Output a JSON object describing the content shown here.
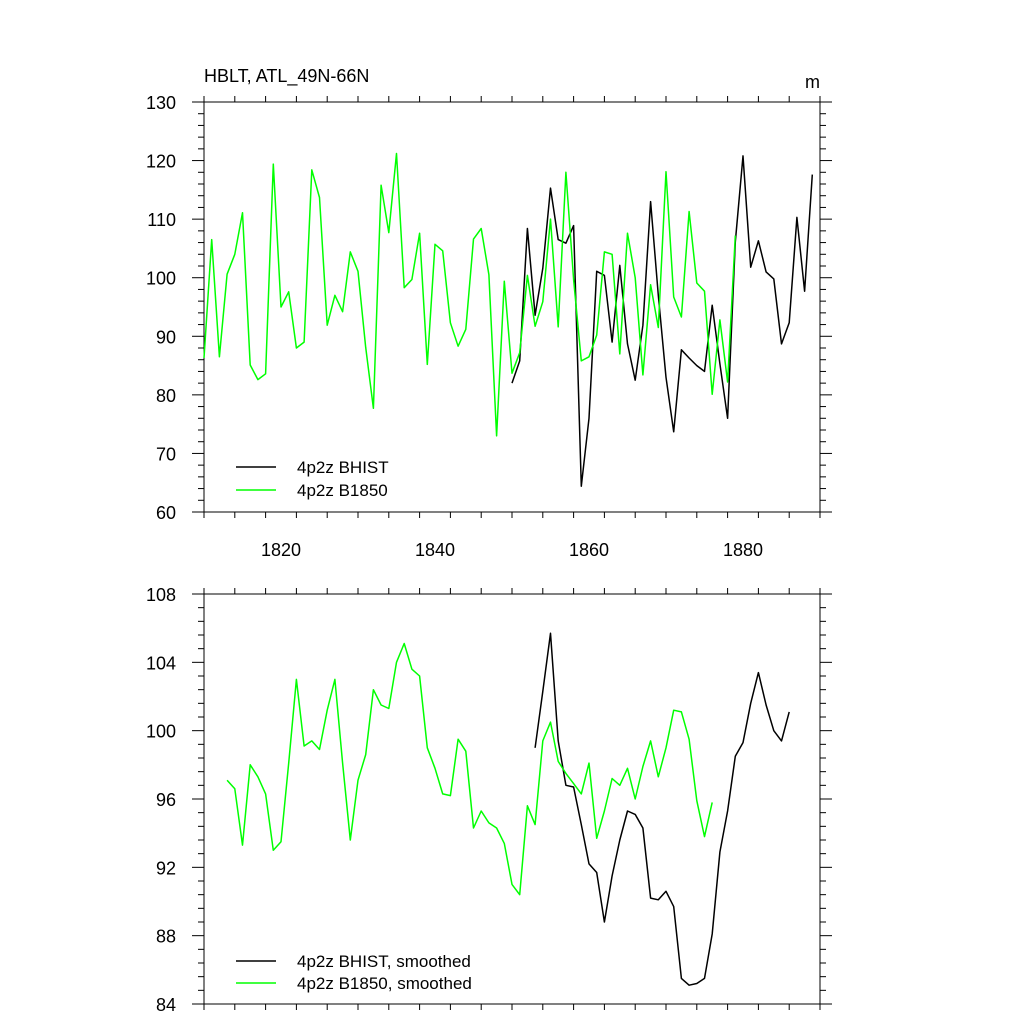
{
  "chart_data": [
    {
      "type": "line",
      "title": "HBLT, ATL_49N-66N",
      "units_label": "m",
      "xlim": [
        1810,
        1890
      ],
      "ylim": [
        60,
        130
      ],
      "xticks": [
        1820,
        1840,
        1860,
        1880
      ],
      "xtick_labels": [
        "1820",
        "1840",
        "1860",
        "1880"
      ],
      "yticks": [
        60,
        70,
        80,
        90,
        100,
        110,
        120,
        130
      ],
      "ytick_labels": [
        "60",
        "70",
        "80",
        "90",
        "100",
        "110",
        "120",
        "130"
      ],
      "legend_position": "bottom-left",
      "series": [
        {
          "name": "4p2z BHIST",
          "color": "#000000",
          "x": [
            1850,
            1851,
            1852,
            1853,
            1854,
            1855,
            1856,
            1857,
            1858,
            1859,
            1860,
            1861,
            1862,
            1863,
            1864,
            1865,
            1866,
            1867,
            1868,
            1869,
            1870,
            1871,
            1872,
            1873,
            1874,
            1875,
            1876,
            1877,
            1878,
            1879,
            1880,
            1881,
            1882,
            1883,
            1884,
            1885,
            1886,
            1887,
            1888,
            1889
          ],
          "y": [
            82,
            85.8,
            108.4,
            93.6,
            101.6,
            115.3,
            106.5,
            105.9,
            108.9,
            64.4,
            76,
            101.1,
            100.4,
            89,
            102.1,
            88.7,
            82.5,
            91.9,
            113,
            97,
            83,
            73.7,
            87.7,
            86.3,
            85,
            84,
            95.3,
            85.3,
            76,
            106.1,
            120.8,
            101.8,
            106.3,
            101,
            99.8,
            88.7,
            92.3,
            110.3,
            97.7,
            117.6
          ]
        },
        {
          "name": "4p2z B1850",
          "color": "#00ff00",
          "x": [
            1810,
            1811,
            1812,
            1813,
            1814,
            1815,
            1816,
            1817,
            1818,
            1819,
            1820,
            1821,
            1822,
            1823,
            1824,
            1825,
            1826,
            1827,
            1828,
            1829,
            1830,
            1831,
            1832,
            1833,
            1834,
            1835,
            1836,
            1837,
            1838,
            1839,
            1840,
            1841,
            1842,
            1843,
            1844,
            1845,
            1846,
            1847,
            1848,
            1849,
            1850,
            1851,
            1852,
            1853,
            1854,
            1855,
            1856,
            1857,
            1858,
            1859,
            1860,
            1861,
            1862,
            1863,
            1864,
            1865,
            1866,
            1867,
            1868,
            1869,
            1870,
            1871,
            1872,
            1873,
            1874,
            1875,
            1876,
            1877,
            1878,
            1879
          ],
          "y": [
            86.3,
            106.5,
            86.5,
            100.6,
            104,
            111.1,
            85.1,
            82.6,
            83.6,
            119.4,
            95,
            97.6,
            88,
            89,
            118.4,
            113.7,
            91.9,
            97,
            94.2,
            104.4,
            101.1,
            88.1,
            77.7,
            115.8,
            107.7,
            121.2,
            98.3,
            99.7,
            107.6,
            85.2,
            105.7,
            104.6,
            92.3,
            88.3,
            91.2,
            106.6,
            108.4,
            100.5,
            73,
            99.4,
            83.7,
            87.2,
            100.4,
            91.7,
            95.9,
            110,
            91.6,
            118,
            99.7,
            85.8,
            86.5,
            90.2,
            104.4,
            104,
            87,
            107.6,
            100,
            83.4,
            98.8,
            91.5,
            118.1,
            96.7,
            93.3,
            111.3,
            99.1,
            97.7,
            80.1,
            92.8,
            82.2,
            107.2
          ]
        }
      ]
    },
    {
      "type": "line",
      "title": "",
      "xlim": [
        1810,
        1890
      ],
      "ylim": [
        84,
        108
      ],
      "xticks": [
        1820,
        1840,
        1860,
        1880
      ],
      "yticks": [
        84,
        88,
        92,
        96,
        100,
        104,
        108
      ],
      "ytick_labels": [
        "84",
        "88",
        "92",
        "96",
        "100",
        "104",
        "108"
      ],
      "legend_position": "bottom-left",
      "series": [
        {
          "name": "4p2z BHIST, smoothed",
          "color": "#000000",
          "x": [
            1853,
            1854,
            1855,
            1856,
            1857,
            1858,
            1859,
            1860,
            1861,
            1862,
            1863,
            1864,
            1865,
            1866,
            1867,
            1868,
            1869,
            1870,
            1871,
            1872,
            1873,
            1874,
            1875,
            1876,
            1877,
            1878,
            1879,
            1880,
            1881,
            1882,
            1883,
            1884,
            1885,
            1886
          ],
          "y": [
            99,
            102.3,
            105.7,
            99.4,
            96.8,
            96.7,
            94.5,
            92.2,
            91.7,
            88.8,
            91.5,
            93.6,
            95.3,
            95.1,
            94.3,
            90.2,
            90.1,
            90.6,
            89.7,
            85.5,
            85.1,
            85.2,
            85.5,
            88.1,
            92.9,
            95.3,
            98.5,
            99.3,
            101.6,
            103.4,
            101.5,
            100,
            99.4,
            101.1
          ]
        },
        {
          "name": "4p2z B1850, smoothed",
          "color": "#00ff00",
          "x": [
            1813,
            1814,
            1815,
            1816,
            1817,
            1818,
            1819,
            1820,
            1821,
            1822,
            1823,
            1824,
            1825,
            1826,
            1827,
            1828,
            1829,
            1830,
            1831,
            1832,
            1833,
            1834,
            1835,
            1836,
            1837,
            1838,
            1839,
            1840,
            1841,
            1842,
            1843,
            1844,
            1845,
            1846,
            1847,
            1848,
            1849,
            1850,
            1851,
            1852,
            1853,
            1854,
            1855,
            1856,
            1857,
            1858,
            1859,
            1860,
            1861,
            1862,
            1863,
            1864,
            1865,
            1866,
            1867,
            1868,
            1869,
            1870,
            1871,
            1872,
            1873,
            1874,
            1875,
            1876
          ],
          "y": [
            97.1,
            96.6,
            93.3,
            98,
            97.3,
            96.3,
            93,
            93.5,
            98.1,
            103,
            99.1,
            99.4,
            98.9,
            101.2,
            103,
            98.1,
            93.6,
            97.1,
            98.6,
            102.4,
            101.5,
            101.3,
            104,
            105.1,
            103.6,
            103.2,
            99,
            97.8,
            96.3,
            96.2,
            99.5,
            98.8,
            94.3,
            95.3,
            94.6,
            94.3,
            93.4,
            91,
            90.4,
            95.6,
            94.5,
            99.4,
            100.5,
            98.2,
            97.5,
            96.9,
            96.3,
            98.1,
            93.7,
            95.3,
            97.2,
            96.8,
            97.8,
            96,
            97.9,
            99.4,
            97.3,
            99,
            101.2,
            101.1,
            99.5,
            95.9,
            93.8,
            95.8
          ]
        }
      ]
    }
  ]
}
